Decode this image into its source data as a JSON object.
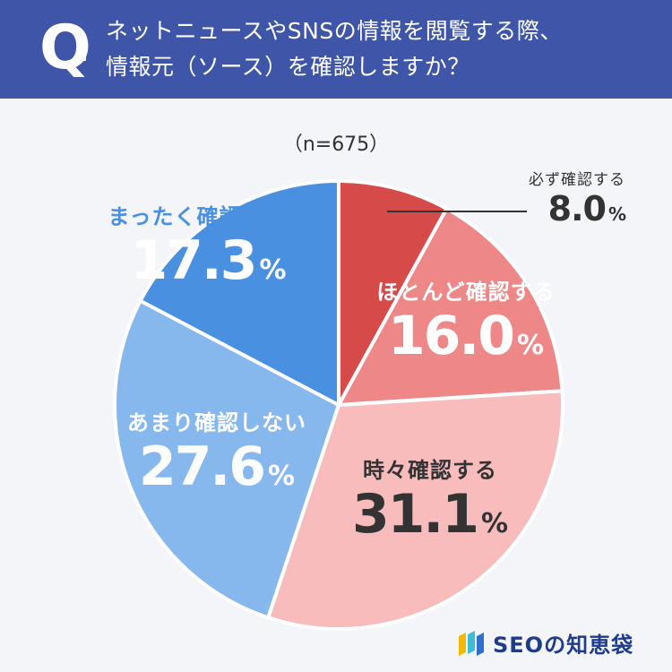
{
  "header": {
    "q_mark": "Q",
    "line1": "ネットニュースやSNSの情報を閲覧する際、",
    "line2": "情報元（ソース）を確認しますか？"
  },
  "sample_size": "（n=675）",
  "chart_data": {
    "type": "pie",
    "title": "ネットニュースやSNSの情報を閲覧する際、情報元（ソース）を確認しますか？",
    "unit": "%",
    "start_angle": "12 o'clock",
    "direction": "clockwise",
    "slices": [
      {
        "label": "必ず確認する",
        "value": 8.0,
        "color": "#d64a4a",
        "text_color": "#333333"
      },
      {
        "label": "ほとんど確認する",
        "value": 16.0,
        "color": "#ee8888",
        "text_color": "#ffffff"
      },
      {
        "label": "時々確認する",
        "value": 31.1,
        "color": "#f8bcbc",
        "text_color": "#333333"
      },
      {
        "label": "あまり確認しない",
        "value": 27.6,
        "color": "#86b8ee",
        "text_color": "#ffffff"
      },
      {
        "label": "まったく確認しない",
        "value": 17.3,
        "color": "#4a90e0",
        "text_color": "#ffffff"
      }
    ],
    "value_strings": [
      "8.0",
      "16.0",
      "31.1",
      "27.6",
      "17.3"
    ],
    "percent_sign": "%"
  },
  "logo": {
    "text": "SEOの知恵袋"
  }
}
